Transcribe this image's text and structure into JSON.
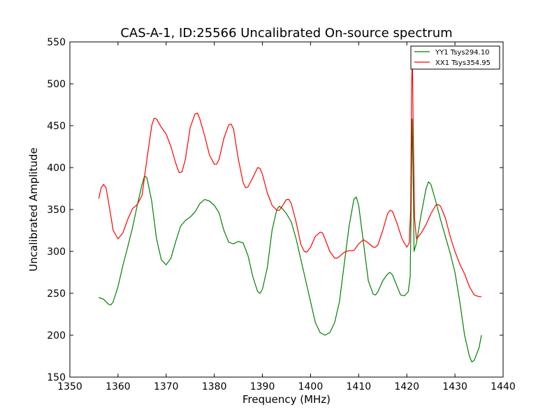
{
  "chart_data": {
    "type": "line",
    "title": "CAS-A-1, ID:25566 Uncalibrated On-source spectrum",
    "xlabel": "Frequency (MHz)",
    "ylabel": "Uncalibrated Amplitude",
    "xlim": [
      1350,
      1440
    ],
    "ylim": [
      150,
      550
    ],
    "xticks": [
      1350,
      1360,
      1370,
      1380,
      1390,
      1400,
      1410,
      1420,
      1430,
      1440
    ],
    "yticks": [
      150,
      200,
      250,
      300,
      350,
      400,
      450,
      500,
      550
    ],
    "grid": false,
    "legend_position": "top-right",
    "series": [
      {
        "name": "YY1 Tsys294.10",
        "color": "#008000",
        "points": [
          [
            1356,
            245
          ],
          [
            1357,
            243
          ],
          [
            1358,
            237
          ],
          [
            1358.5,
            236
          ],
          [
            1359,
            240
          ],
          [
            1360,
            258
          ],
          [
            1361,
            283
          ],
          [
            1362,
            305
          ],
          [
            1363,
            328
          ],
          [
            1364,
            355
          ],
          [
            1365,
            380
          ],
          [
            1365.5,
            390
          ],
          [
            1366,
            388
          ],
          [
            1367,
            360
          ],
          [
            1368,
            315
          ],
          [
            1369,
            290
          ],
          [
            1370,
            284
          ],
          [
            1371,
            292
          ],
          [
            1372,
            312
          ],
          [
            1373,
            330
          ],
          [
            1374,
            337
          ],
          [
            1375,
            341
          ],
          [
            1376,
            347
          ],
          [
            1377,
            357
          ],
          [
            1378,
            362
          ],
          [
            1379,
            360
          ],
          [
            1380,
            355
          ],
          [
            1381,
            346
          ],
          [
            1382,
            325
          ],
          [
            1383,
            311
          ],
          [
            1384,
            309
          ],
          [
            1385,
            312
          ],
          [
            1386,
            310
          ],
          [
            1387,
            295
          ],
          [
            1388,
            270
          ],
          [
            1389,
            252
          ],
          [
            1389.5,
            250
          ],
          [
            1390,
            255
          ],
          [
            1391,
            280
          ],
          [
            1392,
            325
          ],
          [
            1393,
            350
          ],
          [
            1393.5,
            354
          ],
          [
            1394,
            352
          ],
          [
            1395,
            345
          ],
          [
            1396,
            335
          ],
          [
            1397,
            315
          ],
          [
            1398,
            290
          ],
          [
            1399,
            265
          ],
          [
            1400,
            240
          ],
          [
            1401,
            215
          ],
          [
            1402,
            203
          ],
          [
            1403,
            200
          ],
          [
            1404,
            203
          ],
          [
            1405,
            215
          ],
          [
            1406,
            240
          ],
          [
            1407,
            285
          ],
          [
            1408,
            330
          ],
          [
            1409,
            362
          ],
          [
            1409.5,
            365
          ],
          [
            1410,
            355
          ],
          [
            1411,
            310
          ],
          [
            1412,
            265
          ],
          [
            1413,
            249
          ],
          [
            1413.5,
            248
          ],
          [
            1414,
            252
          ],
          [
            1415,
            265
          ],
          [
            1416,
            273
          ],
          [
            1416.5,
            275
          ],
          [
            1417,
            272
          ],
          [
            1418,
            258
          ],
          [
            1418.7,
            248
          ],
          [
            1419.5,
            247
          ],
          [
            1420.3,
            252
          ],
          [
            1420.7,
            270
          ],
          [
            1420.9,
            350
          ],
          [
            1421.1,
            458
          ],
          [
            1421.3,
            400
          ],
          [
            1421.5,
            300
          ],
          [
            1422,
            310
          ],
          [
            1423,
            345
          ],
          [
            1424,
            375
          ],
          [
            1424.5,
            383
          ],
          [
            1425,
            380
          ],
          [
            1426,
            360
          ],
          [
            1427,
            338
          ],
          [
            1428,
            318
          ],
          [
            1429,
            298
          ],
          [
            1430,
            275
          ],
          [
            1431,
            240
          ],
          [
            1432,
            200
          ],
          [
            1433,
            175
          ],
          [
            1433.5,
            168
          ],
          [
            1434,
            170
          ],
          [
            1435,
            185
          ],
          [
            1435.5,
            200
          ]
        ]
      },
      {
        "name": "XX1 Tsys354.95",
        "color": "#ff0000",
        "points": [
          [
            1356,
            363
          ],
          [
            1356.5,
            376
          ],
          [
            1357,
            380
          ],
          [
            1357.5,
            376
          ],
          [
            1358,
            360
          ],
          [
            1359,
            325
          ],
          [
            1360,
            315
          ],
          [
            1361,
            322
          ],
          [
            1362,
            338
          ],
          [
            1363,
            351
          ],
          [
            1364,
            356
          ],
          [
            1365,
            367
          ],
          [
            1366,
            410
          ],
          [
            1367,
            450
          ],
          [
            1367.5,
            459
          ],
          [
            1368,
            458
          ],
          [
            1369,
            448
          ],
          [
            1370,
            440
          ],
          [
            1371,
            425
          ],
          [
            1372,
            405
          ],
          [
            1372.7,
            394
          ],
          [
            1373.3,
            395
          ],
          [
            1374,
            410
          ],
          [
            1375,
            448
          ],
          [
            1376,
            464
          ],
          [
            1376.5,
            465
          ],
          [
            1377,
            458
          ],
          [
            1378,
            438
          ],
          [
            1379,
            415
          ],
          [
            1380,
            404
          ],
          [
            1380.5,
            404
          ],
          [
            1381,
            410
          ],
          [
            1382,
            435
          ],
          [
            1383,
            451
          ],
          [
            1383.5,
            452
          ],
          [
            1384,
            446
          ],
          [
            1385,
            410
          ],
          [
            1386,
            382
          ],
          [
            1386.5,
            376
          ],
          [
            1387,
            377
          ],
          [
            1388,
            388
          ],
          [
            1389,
            400
          ],
          [
            1389.5,
            399
          ],
          [
            1390,
            392
          ],
          [
            1391,
            370
          ],
          [
            1392,
            355
          ],
          [
            1393,
            349
          ],
          [
            1393.5,
            349
          ],
          [
            1394,
            353
          ],
          [
            1395,
            362
          ],
          [
            1395.5,
            362
          ],
          [
            1396,
            357
          ],
          [
            1397,
            335
          ],
          [
            1398,
            308
          ],
          [
            1398.7,
            300
          ],
          [
            1399.2,
            299
          ],
          [
            1400,
            305
          ],
          [
            1401,
            318
          ],
          [
            1402,
            323
          ],
          [
            1402.5,
            322
          ],
          [
            1403,
            315
          ],
          [
            1404,
            300
          ],
          [
            1405,
            292
          ],
          [
            1405.5,
            292
          ],
          [
            1406,
            294
          ],
          [
            1407,
            299
          ],
          [
            1408,
            301
          ],
          [
            1409,
            301
          ],
          [
            1410,
            309
          ],
          [
            1411,
            314
          ],
          [
            1412,
            310
          ],
          [
            1413,
            305
          ],
          [
            1413.5,
            305
          ],
          [
            1414,
            308
          ],
          [
            1415,
            325
          ],
          [
            1416,
            345
          ],
          [
            1416.5,
            349
          ],
          [
            1417,
            348
          ],
          [
            1418,
            333
          ],
          [
            1419,
            315
          ],
          [
            1420,
            305
          ],
          [
            1420.5,
            310
          ],
          [
            1420.8,
            350
          ],
          [
            1421,
            500
          ],
          [
            1421.15,
            532
          ],
          [
            1421.3,
            460
          ],
          [
            1421.6,
            340
          ],
          [
            1422,
            315
          ],
          [
            1423,
            322
          ],
          [
            1424,
            332
          ],
          [
            1425,
            345
          ],
          [
            1426,
            355
          ],
          [
            1426.5,
            356
          ],
          [
            1427,
            354
          ],
          [
            1428,
            340
          ],
          [
            1429,
            318
          ],
          [
            1430,
            300
          ],
          [
            1431,
            285
          ],
          [
            1432,
            273
          ],
          [
            1433,
            258
          ],
          [
            1434,
            248
          ],
          [
            1435,
            246
          ],
          [
            1435.5,
            246
          ]
        ]
      }
    ]
  }
}
